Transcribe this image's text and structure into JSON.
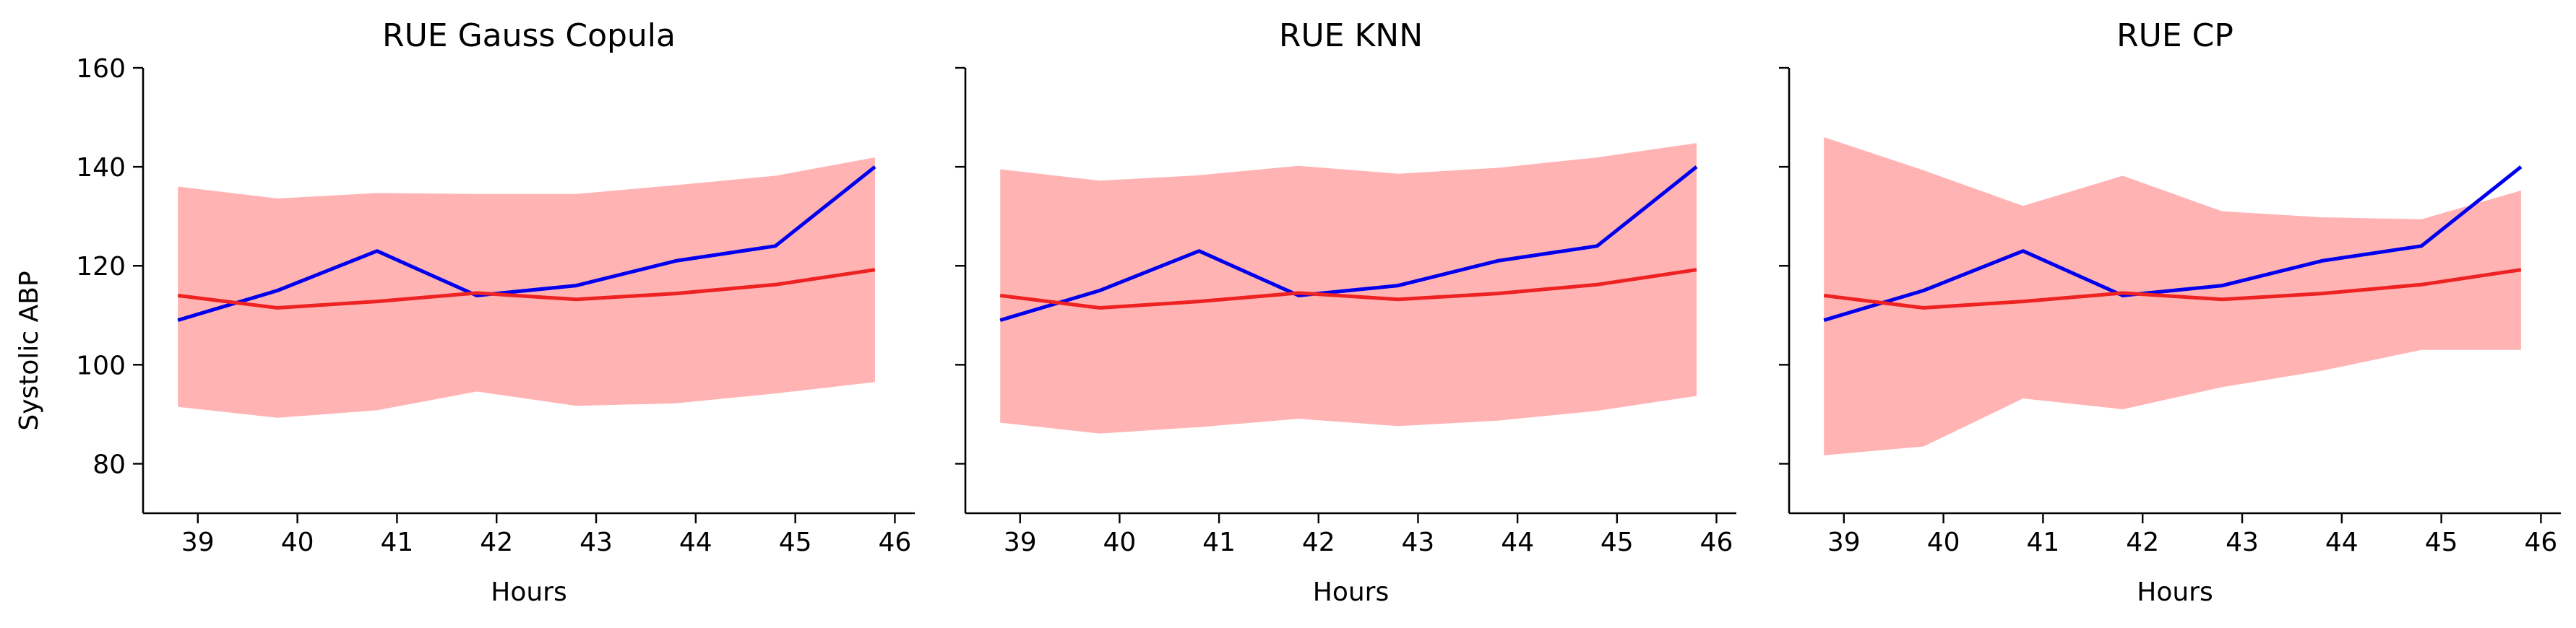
{
  "figure": {
    "ylabel": "Systolic ABP",
    "xlabel": "Hours"
  },
  "chart_data": [
    {
      "type": "line",
      "title": "RUE Gauss Copula",
      "xlabel": "Hours",
      "ylabel": "Systolic ABP",
      "xlim": [
        38.45,
        46.2
      ],
      "ylim": [
        70,
        160
      ],
      "xticks": [
        39,
        40,
        41,
        42,
        43,
        44,
        45,
        46
      ],
      "yticks": [
        80,
        100,
        120,
        140,
        160
      ],
      "x": [
        38.8,
        39.8,
        40.8,
        41.8,
        42.8,
        43.8,
        44.8,
        45.8
      ],
      "series": [
        {
          "values": [
            109,
            115,
            123,
            114,
            116,
            121,
            124,
            140
          ],
          "color": "#0000ee"
        },
        {
          "values": [
            114,
            111.5,
            112.8,
            114.5,
            113.2,
            114.4,
            116.2,
            119.2
          ],
          "color": "#ee2222"
        }
      ],
      "band": {
        "lower": [
          91.5,
          89.3,
          90.8,
          94.6,
          91.7,
          92.2,
          94.2,
          96.5
        ],
        "upper": [
          136,
          133.6,
          134.7,
          134.5,
          134.5,
          136.3,
          138.2,
          141.9
        ],
        "color": "#ffb3b3"
      },
      "grid": false
    },
    {
      "type": "line",
      "title": "RUE KNN",
      "xlabel": "Hours",
      "ylabel": "",
      "xlim": [
        38.45,
        46.2
      ],
      "ylim": [
        70,
        160
      ],
      "xticks": [
        39,
        40,
        41,
        42,
        43,
        44,
        45,
        46
      ],
      "yticks": [
        80,
        100,
        120,
        140,
        160
      ],
      "x": [
        38.8,
        39.8,
        40.8,
        41.8,
        42.8,
        43.8,
        44.8,
        45.8
      ],
      "series": [
        {
          "values": [
            109,
            115,
            123,
            114,
            116,
            121,
            124,
            140
          ],
          "color": "#0000ee"
        },
        {
          "values": [
            114,
            111.5,
            112.8,
            114.5,
            113.2,
            114.4,
            116.2,
            119.2
          ],
          "color": "#ee2222"
        }
      ],
      "band": {
        "lower": [
          88.3,
          86.1,
          87.4,
          89.1,
          87.6,
          88.7,
          90.7,
          93.7
        ],
        "upper": [
          139.5,
          137.2,
          138.3,
          140.2,
          138.6,
          139.8,
          141.9,
          144.8
        ],
        "color": "#ffb3b3"
      },
      "grid": false
    },
    {
      "type": "line",
      "title": "RUE CP",
      "xlabel": "Hours",
      "ylabel": "",
      "xlim": [
        38.45,
        46.2
      ],
      "ylim": [
        70,
        160
      ],
      "xticks": [
        39,
        40,
        41,
        42,
        43,
        44,
        45,
        46
      ],
      "yticks": [
        80,
        100,
        120,
        140,
        160
      ],
      "x": [
        38.8,
        39.8,
        40.8,
        41.8,
        42.8,
        43.8,
        44.8,
        45.8
      ],
      "series": [
        {
          "values": [
            109,
            115,
            123,
            114,
            116,
            121,
            124,
            140
          ],
          "color": "#0000ee"
        },
        {
          "values": [
            114,
            111.5,
            112.8,
            114.5,
            113.2,
            114.4,
            116.2,
            119.2
          ],
          "color": "#ee2222"
        }
      ],
      "band": {
        "lower": [
          81.7,
          83.5,
          93.2,
          91,
          95.5,
          98.8,
          103,
          103
        ],
        "upper": [
          146,
          139.3,
          132.1,
          138.2,
          131,
          129.8,
          129.4,
          135.2
        ],
        "color": "#ffb3b3"
      },
      "grid": false
    }
  ]
}
